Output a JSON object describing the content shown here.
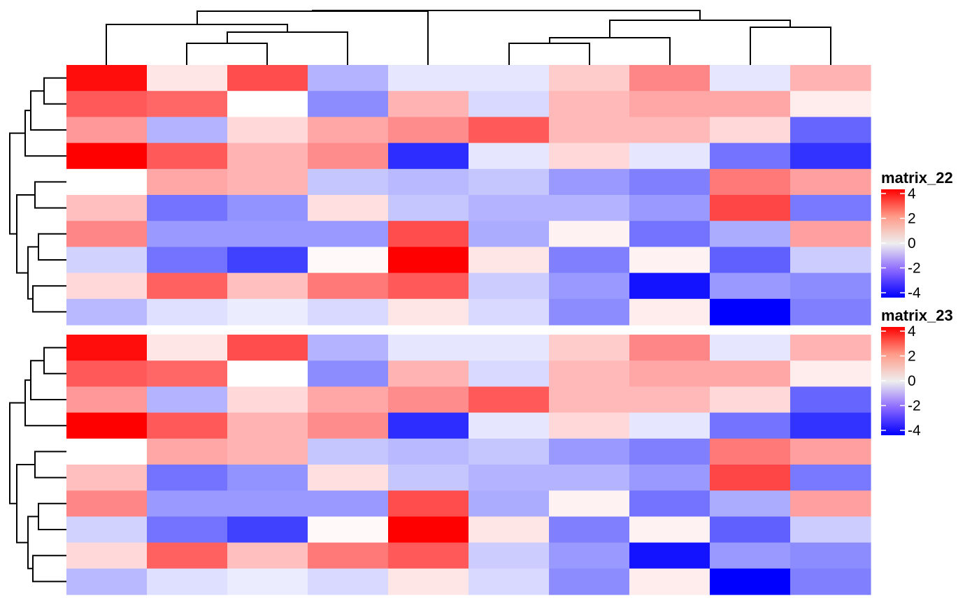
{
  "chart_data": [
    {
      "type": "heatmap",
      "name": "matrix_22",
      "rows": 10,
      "cols": 10,
      "values": [
        [
          3.8,
          0.4,
          2.8,
          -1.2,
          -0.4,
          -0.4,
          0.8,
          1.9,
          -0.4,
          1.2
        ],
        [
          2.6,
          2.4,
          0.0,
          -1.8,
          1.2,
          -0.6,
          1.1,
          1.4,
          1.4,
          0.3
        ],
        [
          1.6,
          -1.2,
          0.6,
          1.4,
          1.8,
          2.6,
          1.1,
          1.1,
          0.6,
          -2.4
        ],
        [
          4.3,
          2.6,
          1.2,
          1.8,
          -3.3,
          -0.4,
          0.6,
          -0.4,
          -2.2,
          -3.2
        ],
        [
          0.0,
          1.4,
          1.2,
          -0.9,
          -1.1,
          -0.9,
          -1.6,
          -2.0,
          2.1,
          1.5
        ],
        [
          1.0,
          -2.2,
          -1.7,
          0.5,
          -0.9,
          -1.2,
          -1.2,
          -1.6,
          2.9,
          -2.1
        ],
        [
          1.9,
          -1.6,
          -1.6,
          -1.6,
          2.8,
          -1.3,
          0.2,
          -2.2,
          -1.3,
          1.5
        ],
        [
          -0.7,
          -2.2,
          -3.0,
          0.1,
          4.4,
          0.4,
          -2.0,
          0.2,
          -2.5,
          -0.8
        ],
        [
          0.6,
          2.5,
          1.0,
          2.1,
          2.6,
          -0.8,
          -1.6,
          -3.7,
          -1.6,
          -1.8
        ],
        [
          -1.1,
          -0.5,
          -0.3,
          -0.6,
          0.4,
          -0.6,
          -1.8,
          0.3,
          -4.5,
          -2.0
        ]
      ]
    },
    {
      "type": "heatmap",
      "name": "matrix_23",
      "rows": 10,
      "cols": 10,
      "values": [
        [
          3.8,
          0.4,
          2.8,
          -1.2,
          -0.4,
          -0.4,
          0.8,
          1.9,
          -0.4,
          1.2
        ],
        [
          2.6,
          2.4,
          0.0,
          -1.8,
          1.2,
          -0.6,
          1.1,
          1.4,
          1.4,
          0.3
        ],
        [
          1.6,
          -1.2,
          0.6,
          1.4,
          1.8,
          2.6,
          1.1,
          1.1,
          0.6,
          -2.4
        ],
        [
          4.3,
          2.6,
          1.2,
          1.8,
          -3.3,
          -0.4,
          0.6,
          -0.4,
          -2.2,
          -3.2
        ],
        [
          0.0,
          1.4,
          1.2,
          -0.9,
          -1.1,
          -0.9,
          -1.6,
          -2.0,
          2.1,
          1.5
        ],
        [
          1.0,
          -2.2,
          -1.7,
          0.5,
          -0.9,
          -1.2,
          -1.2,
          -1.6,
          2.9,
          -2.1
        ],
        [
          1.9,
          -1.6,
          -1.6,
          -1.6,
          2.8,
          -1.3,
          0.2,
          -2.2,
          -1.3,
          1.5
        ],
        [
          -0.7,
          -2.2,
          -3.0,
          0.1,
          4.4,
          0.4,
          -2.0,
          0.2,
          -2.5,
          -0.8
        ],
        [
          0.6,
          2.5,
          1.0,
          2.1,
          2.6,
          -0.8,
          -1.6,
          -3.7,
          -1.6,
          -1.8
        ],
        [
          -1.1,
          -0.5,
          -0.3,
          -0.6,
          0.4,
          -0.6,
          -1.8,
          0.3,
          -4.5,
          -2.0
        ]
      ]
    }
  ],
  "legends": [
    {
      "title": "matrix_22",
      "ticks": [
        "4",
        "2",
        "0",
        "-2",
        "-4"
      ]
    },
    {
      "title": "matrix_23",
      "ticks": [
        "4",
        "2",
        "0",
        "-2",
        "-4"
      ]
    }
  ],
  "color_scale": {
    "min": -4,
    "mid": 0,
    "max": 4,
    "low_color": "#0000ff",
    "mid_color": "#ffffff",
    "high_color": "#ff0000",
    "legend_gradient": [
      "#ff0000",
      "#ff9a88",
      "#eeeeee",
      "#8866ff",
      "#0000ff"
    ]
  }
}
